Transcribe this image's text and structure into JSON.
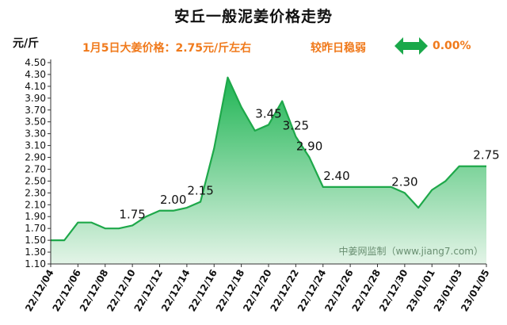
{
  "header": {
    "title": "安丘一般泥姜价格走势",
    "unit": "元/斤",
    "price_note": "1月5日大姜价格：2.75元/斤左右",
    "trend": "较昨日稳弱",
    "change": "0.00%",
    "trend_icon": "double-arrow-icon"
  },
  "colors": {
    "line": "#1ea84a",
    "fill_top": "#1fb554",
    "fill_bottom": "#e3f4e7",
    "accent": "#f07a1c",
    "arrow": "#1aa84a"
  },
  "chart_data": {
    "type": "area",
    "title": "安丘一般泥姜价格走势",
    "ylabel": "元/斤",
    "ylim": [
      1.1,
      4.5
    ],
    "y_ticks": [
      "1.10",
      "1.30",
      "1.50",
      "1.70",
      "1.90",
      "2.10",
      "2.30",
      "2.50",
      "2.70",
      "2.90",
      "3.10",
      "3.30",
      "3.50",
      "3.70",
      "3.90",
      "4.10",
      "4.30",
      "4.50"
    ],
    "x_tick_labels": [
      "22/12/04",
      "22/12/06",
      "22/12/08",
      "22/12/10",
      "22/12/12",
      "22/12/14",
      "22/12/16",
      "22/12/18",
      "22/12/20",
      "22/12/22",
      "22/12/24",
      "22/12/26",
      "22/12/28",
      "22/12/30",
      "23/01/01",
      "23/01/03",
      "23/01/05"
    ],
    "x": [
      "22/12/04",
      "22/12/05",
      "22/12/06",
      "22/12/07",
      "22/12/08",
      "22/12/09",
      "22/12/10",
      "22/12/11",
      "22/12/12",
      "22/12/13",
      "22/12/14",
      "22/12/15",
      "22/12/16",
      "22/12/17",
      "22/12/18",
      "22/12/19",
      "22/12/20",
      "22/12/21",
      "22/12/22",
      "22/12/23",
      "22/12/24",
      "22/12/25",
      "22/12/26",
      "22/12/27",
      "22/12/28",
      "22/12/29",
      "22/12/30",
      "22/12/31",
      "23/01/01",
      "23/01/02",
      "23/01/03",
      "23/01/04",
      "23/01/05"
    ],
    "values": [
      1.5,
      1.5,
      1.8,
      1.8,
      1.7,
      1.7,
      1.75,
      1.9,
      2.0,
      2.0,
      2.05,
      2.15,
      3.05,
      4.25,
      3.75,
      3.35,
      3.45,
      3.85,
      3.25,
      2.9,
      2.4,
      2.4,
      2.4,
      2.4,
      2.4,
      2.4,
      2.3,
      2.05,
      2.35,
      2.5,
      2.75,
      2.75,
      2.75
    ],
    "data_labels": [
      {
        "index": 6,
        "text": "1.75"
      },
      {
        "index": 9,
        "text": "2.00"
      },
      {
        "index": 11,
        "text": "2.15"
      },
      {
        "index": 16,
        "text": "3.45"
      },
      {
        "index": 18,
        "text": "3.25"
      },
      {
        "index": 19,
        "text": "2.90"
      },
      {
        "index": 21,
        "text": "2.40"
      },
      {
        "index": 26,
        "text": "2.30"
      },
      {
        "index": 32,
        "text": "2.75"
      }
    ],
    "watermark": "中姜网监制（www.jiang7.com）",
    "grid": false,
    "legend": "none"
  }
}
